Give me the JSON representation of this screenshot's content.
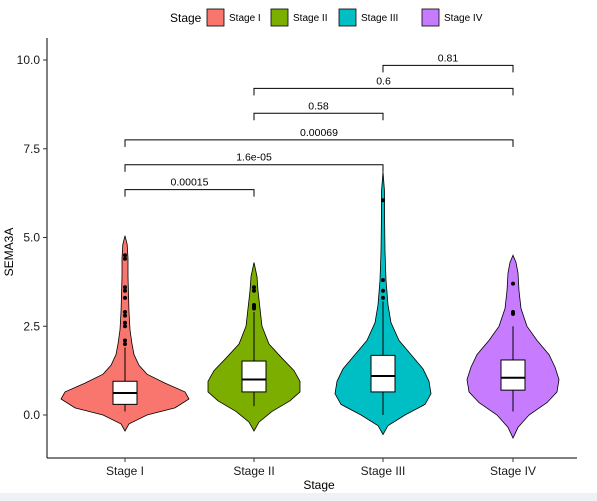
{
  "chart_data": {
    "type": "violin",
    "xlabel": "Stage",
    "ylabel": "SEMA3A",
    "ylim": [
      -1.2,
      10.5
    ],
    "yticks": [
      0.0,
      2.5,
      5.0,
      7.5,
      10.0
    ],
    "ytick_labels": [
      "0.0",
      "2.5",
      "5.0",
      "7.5",
      "10.0"
    ],
    "categories": [
      "Stage I",
      "Stage II",
      "Stage III",
      "Stage IV"
    ],
    "legend": {
      "title": "Stage",
      "position": "top",
      "items": [
        {
          "label": "Stage I",
          "color": "#F8766D"
        },
        {
          "label": "Stage II",
          "color": "#7CAE00"
        },
        {
          "label": "Stage III",
          "color": "#00BFC4"
        },
        {
          "label": "Stage IV",
          "color": "#C77CFF"
        }
      ]
    },
    "series": [
      {
        "name": "Stage I",
        "color": "#F8766D",
        "violin_range": [
          -0.45,
          5.05
        ],
        "box": {
          "q1": 0.3,
          "median": 0.62,
          "q3": 0.95,
          "whisker_low": 0.1,
          "whisker_high": 1.9
        },
        "outliers": [
          2.0,
          2.1,
          2.5,
          2.6,
          2.8,
          2.9,
          3.3,
          3.5,
          3.6,
          4.4,
          4.5
        ]
      },
      {
        "name": "Stage II",
        "color": "#7CAE00",
        "violin_range": [
          -0.45,
          4.3
        ],
        "box": {
          "q1": 0.65,
          "median": 1.0,
          "q3": 1.52,
          "whisker_low": 0.25,
          "whisker_high": 2.9
        },
        "outliers": [
          3.0,
          3.05,
          3.1,
          3.5,
          3.6
        ]
      },
      {
        "name": "Stage III",
        "color": "#00BFC4",
        "violin_range": [
          -0.55,
          6.85
        ],
        "box": {
          "q1": 0.65,
          "median": 1.1,
          "q3": 1.68,
          "whisker_low": 0.0,
          "whisker_high": 3.2
        },
        "outliers": [
          3.3,
          3.5,
          3.8,
          6.05
        ]
      },
      {
        "name": "Stage IV",
        "color": "#C77CFF",
        "violin_range": [
          -0.65,
          4.5
        ],
        "box": {
          "q1": 0.7,
          "median": 1.05,
          "q3": 1.55,
          "whisker_low": 0.1,
          "whisker_high": 2.5
        },
        "outliers": [
          2.85,
          2.9,
          3.7
        ]
      }
    ],
    "comparisons": [
      {
        "groups": [
          "Stage I",
          "Stage II"
        ],
        "label": "0.00015",
        "y": 6.35
      },
      {
        "groups": [
          "Stage I",
          "Stage III"
        ],
        "label": "1.6e-05",
        "y": 7.05
      },
      {
        "groups": [
          "Stage I",
          "Stage IV"
        ],
        "label": "0.00069",
        "y": 7.75
      },
      {
        "groups": [
          "Stage II",
          "Stage III"
        ],
        "label": "0.58",
        "y": 8.5
      },
      {
        "groups": [
          "Stage II",
          "Stage IV"
        ],
        "label": "0.6",
        "y": 9.2
      },
      {
        "groups": [
          "Stage III",
          "Stage IV"
        ],
        "label": "0.81",
        "y": 9.85
      }
    ]
  }
}
